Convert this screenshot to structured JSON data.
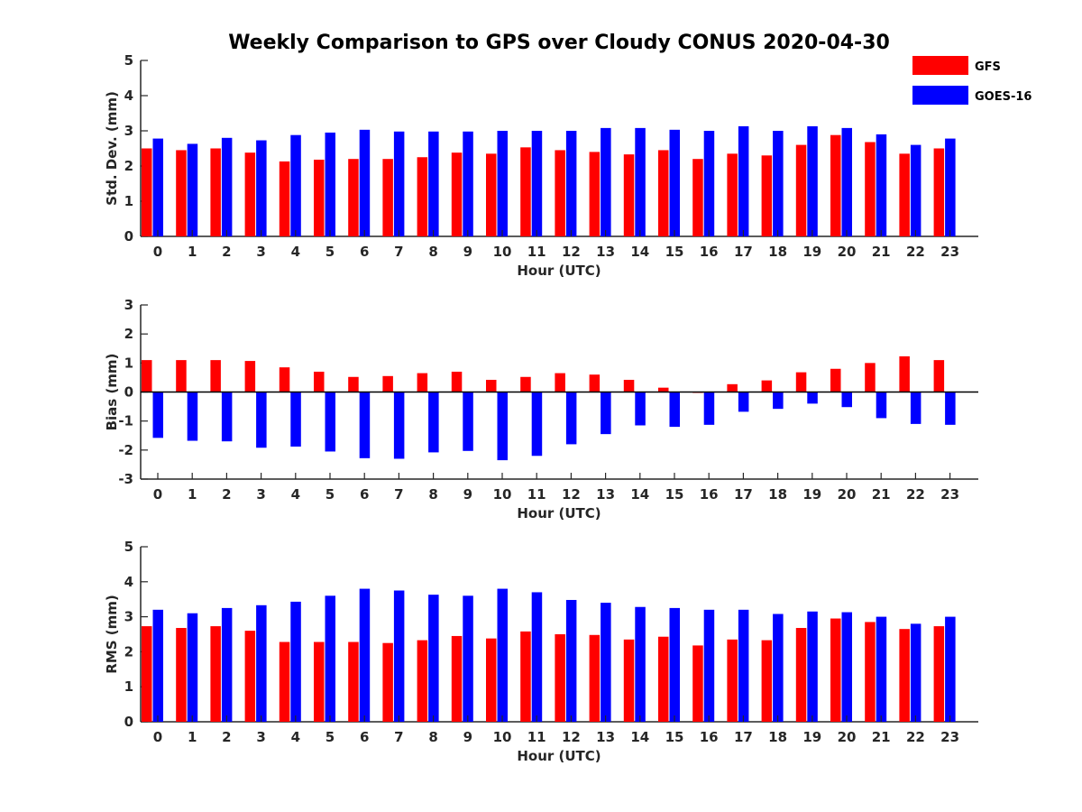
{
  "title": "Weekly Comparison to GPS over Cloudy CONUS 2020-04-30",
  "legend": {
    "placement": "top-right",
    "entries": [
      {
        "label": "GFS",
        "color": "#ff0000"
      },
      {
        "label": "GOES-16",
        "color": "#0000ff"
      }
    ]
  },
  "chart_data": [
    {
      "type": "bar",
      "xlabel": "Hour (UTC)",
      "ylabel": "Std. Dev. (mm)",
      "ylim": [
        0,
        5
      ],
      "yticks": [
        0,
        1,
        2,
        3,
        4,
        5
      ],
      "categories": [
        "0",
        "1",
        "2",
        "3",
        "4",
        "5",
        "6",
        "7",
        "8",
        "9",
        "10",
        "11",
        "12",
        "13",
        "14",
        "15",
        "16",
        "17",
        "18",
        "19",
        "20",
        "21",
        "22",
        "23"
      ],
      "series": [
        {
          "name": "GFS",
          "color": "#ff0000",
          "values": [
            2.5,
            2.45,
            2.5,
            2.38,
            2.13,
            2.18,
            2.2,
            2.2,
            2.25,
            2.38,
            2.35,
            2.53,
            2.45,
            2.4,
            2.33,
            2.45,
            2.2,
            2.35,
            2.3,
            2.6,
            2.88,
            2.68,
            2.35,
            2.5
          ]
        },
        {
          "name": "GOES-16",
          "color": "#0000ff",
          "values": [
            2.78,
            2.63,
            2.8,
            2.73,
            2.88,
            2.95,
            3.03,
            2.98,
            2.98,
            2.98,
            3.0,
            3.0,
            3.0,
            3.08,
            3.08,
            3.03,
            3.0,
            3.13,
            3.0,
            3.13,
            3.08,
            2.9,
            2.6,
            2.78
          ]
        }
      ]
    },
    {
      "type": "bar",
      "xlabel": "Hour (UTC)",
      "ylabel": "Bias (mm)",
      "ylim": [
        -3,
        3
      ],
      "yticks": [
        -3,
        -2,
        -1,
        0,
        1,
        2,
        3
      ],
      "zero_line": true,
      "categories": [
        "0",
        "1",
        "2",
        "3",
        "4",
        "5",
        "6",
        "7",
        "8",
        "9",
        "10",
        "11",
        "12",
        "13",
        "14",
        "15",
        "16",
        "17",
        "18",
        "19",
        "20",
        "21",
        "22",
        "23"
      ],
      "series": [
        {
          "name": "GFS",
          "color": "#ff0000",
          "values": [
            1.1,
            1.1,
            1.1,
            1.07,
            0.85,
            0.7,
            0.52,
            0.55,
            0.65,
            0.7,
            0.42,
            0.52,
            0.65,
            0.6,
            0.42,
            0.15,
            -0.03,
            0.27,
            0.4,
            0.68,
            0.8,
            1.0,
            1.23,
            1.1
          ]
        },
        {
          "name": "GOES-16",
          "color": "#0000ff",
          "values": [
            -1.58,
            -1.68,
            -1.7,
            -1.92,
            -1.88,
            -2.05,
            -2.28,
            -2.3,
            -2.08,
            -2.03,
            -2.35,
            -2.2,
            -1.8,
            -1.45,
            -1.15,
            -1.2,
            -1.13,
            -0.68,
            -0.58,
            -0.4,
            -0.52,
            -0.9,
            -1.1,
            -1.13
          ]
        }
      ]
    },
    {
      "type": "bar",
      "xlabel": "Hour (UTC)",
      "ylabel": "RMS (mm)",
      "ylim": [
        0,
        5
      ],
      "yticks": [
        0,
        1,
        2,
        3,
        4,
        5
      ],
      "categories": [
        "0",
        "1",
        "2",
        "3",
        "4",
        "5",
        "6",
        "7",
        "8",
        "9",
        "10",
        "11",
        "12",
        "13",
        "14",
        "15",
        "16",
        "17",
        "18",
        "19",
        "20",
        "21",
        "22",
        "23"
      ],
      "series": [
        {
          "name": "GFS",
          "color": "#ff0000",
          "values": [
            2.73,
            2.68,
            2.73,
            2.6,
            2.28,
            2.28,
            2.28,
            2.25,
            2.33,
            2.45,
            2.38,
            2.58,
            2.5,
            2.48,
            2.35,
            2.43,
            2.18,
            2.35,
            2.33,
            2.68,
            2.95,
            2.85,
            2.65,
            2.73
          ]
        },
        {
          "name": "GOES-16",
          "color": "#0000ff",
          "values": [
            3.2,
            3.1,
            3.25,
            3.33,
            3.43,
            3.6,
            3.8,
            3.75,
            3.63,
            3.6,
            3.8,
            3.7,
            3.48,
            3.4,
            3.28,
            3.25,
            3.2,
            3.2,
            3.08,
            3.15,
            3.13,
            3.0,
            2.8,
            3.0
          ]
        }
      ]
    }
  ]
}
